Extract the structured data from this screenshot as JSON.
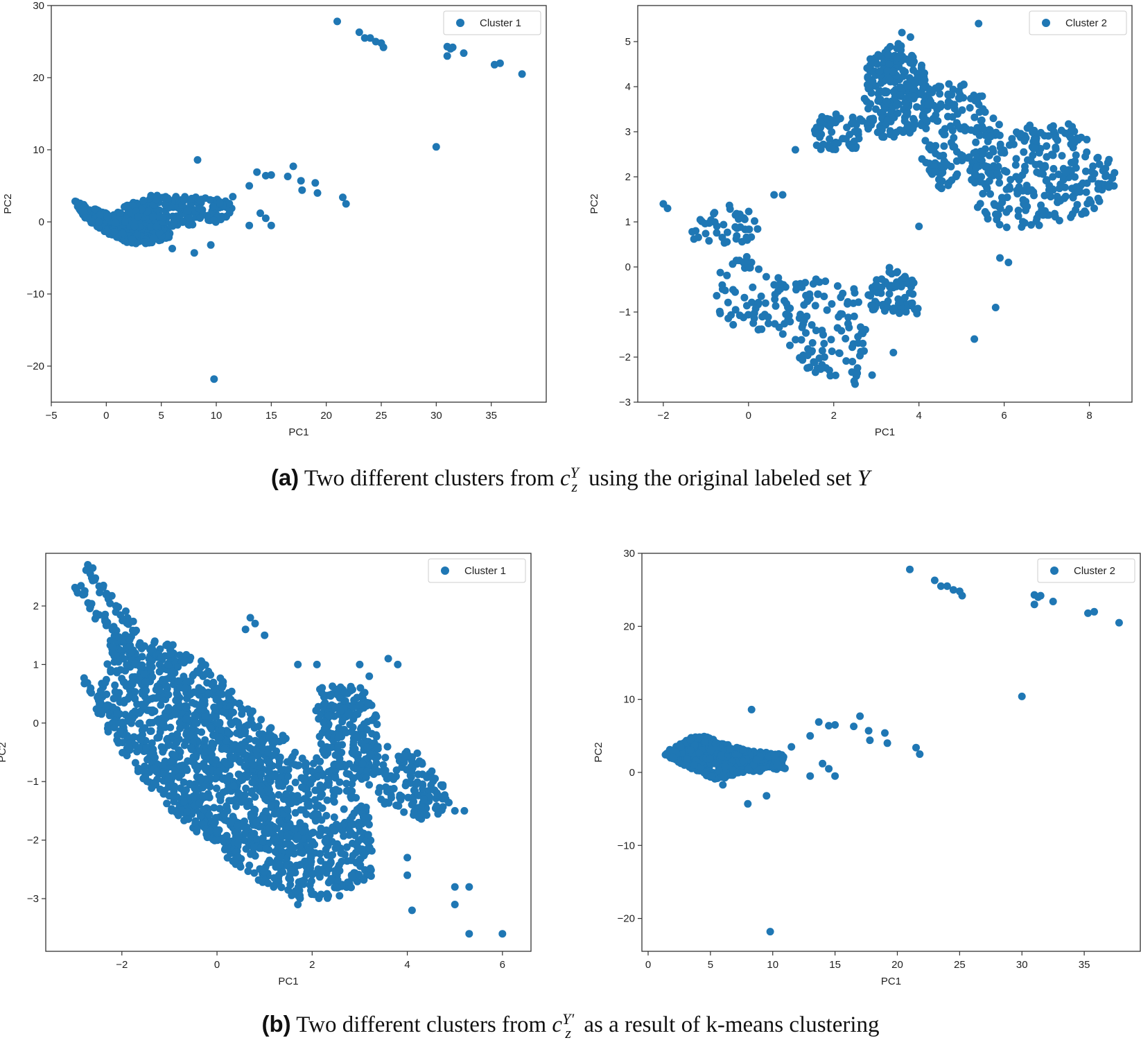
{
  "figure": {
    "caption_a": {
      "tag": "(a)",
      "before": "Two different clusters from ",
      "math_base": "c",
      "math_sup": "Y",
      "math_sub": "z",
      "after": " using the original labeled set ",
      "tail_italic": "Y"
    },
    "caption_b": {
      "tag": "(b)",
      "before": "Two different clusters from ",
      "math_base": "c",
      "math_sup": "Y′",
      "math_sub": "z",
      "after": " as a result of k-means clustering"
    }
  },
  "colors": {
    "marker": "#1f77b4",
    "axis": "#333333",
    "text": "#222222"
  },
  "chart_data": [
    {
      "id": "a-left",
      "type": "scatter",
      "legend": "Cluster 1",
      "legend_position": "top-right",
      "xlabel": "PC1",
      "ylabel": "PC2",
      "xlim": [
        -5,
        40
      ],
      "ylim": [
        -25,
        30
      ],
      "xticks": [
        -5,
        0,
        5,
        10,
        15,
        20,
        25,
        30,
        35
      ],
      "yticks": [
        -20,
        -10,
        0,
        10,
        20,
        30
      ],
      "blobs": [
        {
          "kind": "poly",
          "n": 550,
          "pts": [
            [
              -3,
              2.8
            ],
            [
              -2,
              0.5
            ],
            [
              0,
              -1.5
            ],
            [
              2,
              -3
            ],
            [
              4,
              -3
            ],
            [
              6,
              -2
            ],
            [
              5,
              0
            ],
            [
              2,
              1
            ],
            [
              0,
              1.2
            ],
            [
              -3,
              3
            ]
          ]
        },
        {
          "kind": "poly",
          "n": 220,
          "pts": [
            [
              0,
              0.5
            ],
            [
              2,
              2.5
            ],
            [
              4,
              4
            ],
            [
              8,
              3.5
            ],
            [
              12,
              3
            ],
            [
              11,
              0
            ],
            [
              7,
              -0.5
            ],
            [
              3,
              -1
            ],
            [
              0,
              -0.5
            ]
          ]
        }
      ],
      "points": [
        [
          21,
          27.8
        ],
        [
          23,
          26.3
        ],
        [
          23.5,
          25.5
        ],
        [
          24,
          25.5
        ],
        [
          24.5,
          25
        ],
        [
          25,
          24.8
        ],
        [
          25.2,
          24.2
        ],
        [
          31,
          24.3
        ],
        [
          31.3,
          24
        ],
        [
          31.5,
          24.2
        ],
        [
          32.5,
          23.4
        ],
        [
          31,
          23
        ],
        [
          35.3,
          21.8
        ],
        [
          35.8,
          22
        ],
        [
          37.8,
          20.5
        ],
        [
          30,
          10.4
        ],
        [
          8.3,
          8.6
        ],
        [
          13.7,
          6.9
        ],
        [
          14.5,
          6.4
        ],
        [
          15,
          6.5
        ],
        [
          16.5,
          6.3
        ],
        [
          17,
          7.7
        ],
        [
          17.7,
          5.7
        ],
        [
          17.8,
          4.4
        ],
        [
          19,
          5.4
        ],
        [
          19.2,
          4
        ],
        [
          21.5,
          3.4
        ],
        [
          21.8,
          2.5
        ],
        [
          11.5,
          3.5
        ],
        [
          13,
          5
        ],
        [
          14,
          1.2
        ],
        [
          14.5,
          0.5
        ],
        [
          13,
          -0.5
        ],
        [
          15,
          -0.5
        ],
        [
          8,
          -4.3
        ],
        [
          9.5,
          -3.2
        ],
        [
          6,
          -3.7
        ],
        [
          9.8,
          -21.8
        ]
      ]
    },
    {
      "id": "a-right",
      "type": "scatter",
      "legend": "Cluster 2",
      "legend_position": "top-right",
      "xlabel": "PC1",
      "ylabel": "PC2",
      "xlim": [
        -2.6,
        9
      ],
      "ylim": [
        -3,
        5.8
      ],
      "xticks": [
        -2,
        0,
        2,
        4,
        6,
        8
      ],
      "yticks": [
        -3,
        -2,
        -1,
        0,
        1,
        2,
        3,
        4,
        5
      ],
      "blobs": [
        {
          "kind": "poly",
          "n": 230,
          "pts": [
            [
              2.8,
              4.6
            ],
            [
              3.5,
              5
            ],
            [
              4,
              4.6
            ],
            [
              4.4,
              3.8
            ],
            [
              4,
              3
            ],
            [
              3,
              2.8
            ],
            [
              2.7,
              3.5
            ]
          ]
        },
        {
          "kind": "poly",
          "n": 170,
          "pts": [
            [
              4,
              4.2
            ],
            [
              5.5,
              4
            ],
            [
              6,
              3
            ],
            [
              5.5,
              2
            ],
            [
              4.5,
              1.6
            ],
            [
              4,
              2.5
            ]
          ]
        },
        {
          "kind": "poly",
          "n": 260,
          "pts": [
            [
              5.3,
              2.5
            ],
            [
              6.5,
              3.2
            ],
            [
              7.5,
              3.2
            ],
            [
              8.7,
              2.2
            ],
            [
              8.6,
              1.5
            ],
            [
              7.5,
              1.0
            ],
            [
              6,
              0.8
            ],
            [
              5.3,
              1.2
            ]
          ]
        },
        {
          "kind": "poly",
          "n": 60,
          "pts": [
            [
              1.4,
              3.3
            ],
            [
              2,
              3.4
            ],
            [
              3,
              3.3
            ],
            [
              2.5,
              2.6
            ],
            [
              1.6,
              2.6
            ]
          ]
        },
        {
          "kind": "poly",
          "n": 45,
          "pts": [
            [
              -1.4,
              0.9
            ],
            [
              -0.5,
              1.4
            ],
            [
              0.2,
              1.2
            ],
            [
              0.3,
              0.6
            ],
            [
              -0.5,
              0.5
            ],
            [
              -1.3,
              0.6
            ]
          ]
        },
        {
          "kind": "poly",
          "n": 55,
          "pts": [
            [
              -1.1,
              -0.3
            ],
            [
              0,
              0.3
            ],
            [
              0.8,
              -0.3
            ],
            [
              0.5,
              -1.5
            ],
            [
              -0.5,
              -1.3
            ],
            [
              -1,
              -0.8
            ]
          ]
        },
        {
          "kind": "poly",
          "n": 120,
          "pts": [
            [
              0.6,
              -0.4
            ],
            [
              1.5,
              -0.2
            ],
            [
              2.6,
              -0.5
            ],
            [
              2.8,
              -1.6
            ],
            [
              2.5,
              -2.6
            ],
            [
              1.5,
              -2.4
            ],
            [
              0.6,
              -1.6
            ]
          ]
        },
        {
          "kind": "poly",
          "n": 70,
          "pts": [
            [
              2.8,
              -0.4
            ],
            [
              3.3,
              0
            ],
            [
              3.9,
              -0.3
            ],
            [
              4,
              -1.1
            ],
            [
              3.3,
              -1.1
            ],
            [
              2.8,
              -0.9
            ]
          ]
        }
      ],
      "points": [
        [
          5.4,
          5.4
        ],
        [
          3.6,
          5.2
        ],
        [
          3.8,
          5.1
        ],
        [
          -2,
          1.4
        ],
        [
          -1.9,
          1.3
        ],
        [
          4.0,
          0.9
        ],
        [
          5.8,
          -0.9
        ],
        [
          5.3,
          -1.6
        ],
        [
          2.9,
          -2.4
        ],
        [
          2.5,
          -2.6
        ],
        [
          1.1,
          2.6
        ],
        [
          1.6,
          2.7
        ],
        [
          0.8,
          1.6
        ],
        [
          0.6,
          1.6
        ],
        [
          3.4,
          -1.9
        ],
        [
          5.9,
          0.2
        ],
        [
          6.1,
          0.1
        ]
      ]
    },
    {
      "id": "b-left",
      "type": "scatter",
      "legend": "Cluster 1",
      "legend_position": "top-right",
      "xlabel": "PC1",
      "ylabel": "PC2",
      "xlim": [
        -3.6,
        6.6
      ],
      "ylim": [
        -3.9,
        2.9
      ],
      "xticks": [
        -2,
        0,
        2,
        4,
        6
      ],
      "yticks": [
        -3,
        -2,
        -1,
        0,
        1,
        2
      ],
      "blobs": [
        {
          "kind": "line",
          "n": 120,
          "a": [
            -3.1,
            2.5
          ],
          "b": [
            1.2,
            -2.0
          ],
          "spread": 0.08
        },
        {
          "kind": "line",
          "n": 120,
          "a": [
            -2.8,
            2.7
          ],
          "b": [
            1.6,
            -1.8
          ],
          "spread": 0.08
        },
        {
          "kind": "line",
          "n": 110,
          "a": [
            -2.8,
            0.7
          ],
          "b": [
            0.5,
            -2.4
          ],
          "spread": 0.1
        },
        {
          "kind": "poly",
          "n": 1400,
          "pts": [
            [
              -2.2,
              1.6
            ],
            [
              -1.3,
              1.4
            ],
            [
              -0.5,
              1.3
            ],
            [
              1,
              0
            ],
            [
              2.5,
              -0.8
            ],
            [
              3.2,
              -1.5
            ],
            [
              3.3,
              -2.6
            ],
            [
              2.5,
              -3.0
            ],
            [
              1.5,
              -3.0
            ],
            [
              0.5,
              -2.5
            ],
            [
              -1,
              -1.5
            ],
            [
              -2,
              -0.5
            ],
            [
              -2.6,
              0.2
            ]
          ]
        },
        {
          "kind": "poly",
          "n": 200,
          "pts": [
            [
              2,
              0.6
            ],
            [
              3,
              0.7
            ],
            [
              3.5,
              0
            ],
            [
              3,
              -1.2
            ],
            [
              2.2,
              -0.5
            ]
          ]
        },
        {
          "kind": "poly",
          "n": 160,
          "pts": [
            [
              3.0,
              -0.3
            ],
            [
              4.2,
              -0.5
            ],
            [
              5,
              -1.3
            ],
            [
              4.5,
              -1.7
            ],
            [
              3.5,
              -1.4
            ],
            [
              3.0,
              -0.9
            ]
          ]
        }
      ],
      "points": [
        [
          0.7,
          1.8
        ],
        [
          0.8,
          1.7
        ],
        [
          0.6,
          1.6
        ],
        [
          1,
          1.5
        ],
        [
          1.7,
          1.0
        ],
        [
          2.1,
          1.0
        ],
        [
          3.0,
          1.0
        ],
        [
          3.2,
          0.8
        ],
        [
          3.6,
          1.1
        ],
        [
          3.8,
          1.0
        ],
        [
          5.0,
          -1.5
        ],
        [
          5.2,
          -1.5
        ],
        [
          4.1,
          -3.2
        ],
        [
          5.0,
          -2.8
        ],
        [
          5.3,
          -2.8
        ],
        [
          5.0,
          -3.1
        ],
        [
          5.3,
          -3.6
        ],
        [
          6.0,
          -3.6
        ],
        [
          4.0,
          -2.6
        ],
        [
          4.0,
          -2.3
        ],
        [
          1.7,
          -3.1
        ]
      ]
    },
    {
      "id": "b-right",
      "type": "scatter",
      "legend": "Cluster 2",
      "legend_position": "top-right",
      "xlabel": "PC1",
      "ylabel": "PC2",
      "xlim": [
        -0.5,
        39.5
      ],
      "ylim": [
        -24.5,
        30
      ],
      "xticks": [
        0,
        5,
        10,
        15,
        20,
        25,
        30,
        35
      ],
      "yticks": [
        -20,
        -10,
        0,
        10,
        20,
        30
      ],
      "blobs": [
        {
          "kind": "poly",
          "n": 560,
          "pts": [
            [
              1.2,
              2.5
            ],
            [
              3,
              4.5
            ],
            [
              4,
              5.3
            ],
            [
              6,
              4
            ],
            [
              8,
              3
            ],
            [
              11,
              2.5
            ],
            [
              11,
              0.5
            ],
            [
              8,
              0
            ],
            [
              5.5,
              -1
            ],
            [
              4,
              0
            ],
            [
              2,
              1.8
            ]
          ]
        }
      ],
      "points": [
        [
          21,
          27.8
        ],
        [
          23,
          26.3
        ],
        [
          23.5,
          25.5
        ],
        [
          24,
          25.5
        ],
        [
          24.5,
          25
        ],
        [
          25,
          24.8
        ],
        [
          25.2,
          24.2
        ],
        [
          31,
          24.3
        ],
        [
          31.3,
          24
        ],
        [
          31.5,
          24.2
        ],
        [
          32.5,
          23.4
        ],
        [
          31,
          23
        ],
        [
          35.3,
          21.8
        ],
        [
          35.8,
          22
        ],
        [
          37.8,
          20.5
        ],
        [
          30,
          10.4
        ],
        [
          8.3,
          8.6
        ],
        [
          13.7,
          6.9
        ],
        [
          14.5,
          6.4
        ],
        [
          15,
          6.5
        ],
        [
          16.5,
          6.3
        ],
        [
          17,
          7.7
        ],
        [
          17.7,
          5.7
        ],
        [
          17.8,
          4.4
        ],
        [
          19,
          5.4
        ],
        [
          19.2,
          4
        ],
        [
          21.5,
          3.4
        ],
        [
          21.8,
          2.5
        ],
        [
          11.5,
          3.5
        ],
        [
          13,
          5
        ],
        [
          14,
          1.2
        ],
        [
          14.5,
          0.5
        ],
        [
          13,
          -0.5
        ],
        [
          15,
          -0.5
        ],
        [
          8,
          -4.3
        ],
        [
          9.5,
          -3.2
        ],
        [
          6,
          -1.7
        ],
        [
          9.8,
          -21.8
        ]
      ]
    }
  ]
}
